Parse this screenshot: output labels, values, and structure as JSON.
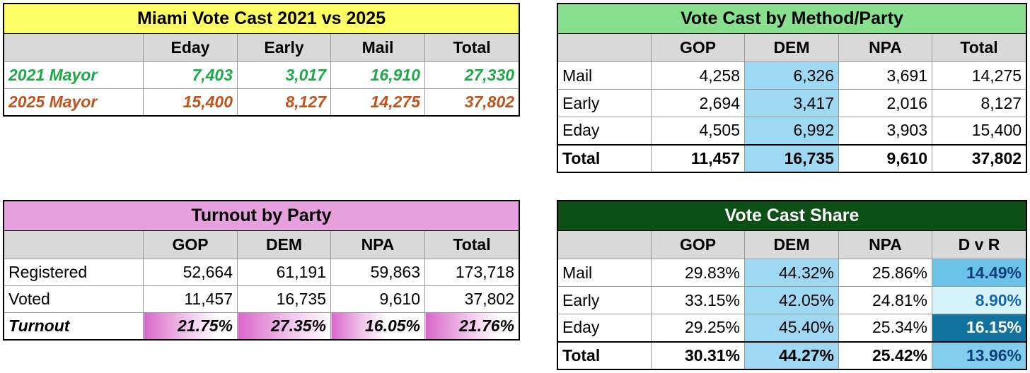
{
  "vote_cast": {
    "title": "Miami Vote Cast 2021 vs 2025",
    "headers": [
      "",
      "Eday",
      "Early",
      "Mail",
      "Total"
    ],
    "rows": [
      {
        "label": "2021 Mayor",
        "values": [
          "7,403",
          "3,017",
          "16,910",
          "27,330"
        ]
      },
      {
        "label": "2025 Mayor",
        "values": [
          "15,400",
          "8,127",
          "14,275",
          "37,802"
        ]
      }
    ],
    "colors": {
      "row_2021": "#1fa84a",
      "row_2025": "#c0541c",
      "title_bg": "#ffff66"
    }
  },
  "method_party": {
    "title": "Vote Cast by Method/Party",
    "headers": [
      "",
      "GOP",
      "DEM",
      "NPA",
      "Total"
    ],
    "rows": [
      {
        "label": "Mail",
        "values": [
          "4,258",
          "6,326",
          "3,691",
          "14,275"
        ]
      },
      {
        "label": "Early",
        "values": [
          "2,694",
          "3,417",
          "2,016",
          "8,127"
        ]
      },
      {
        "label": "Eday",
        "values": [
          "4,505",
          "6,992",
          "3,903",
          "15,400"
        ]
      },
      {
        "label": "Total",
        "values": [
          "11,457",
          "16,735",
          "9,610",
          "37,802"
        ]
      }
    ],
    "colors": {
      "title_bg": "#88e08f",
      "dem_highlight": "#9fd8f3"
    }
  },
  "turnout": {
    "title": "Turnout by Party",
    "headers": [
      "",
      "GOP",
      "DEM",
      "NPA",
      "Total"
    ],
    "rows": [
      {
        "label": "Registered",
        "values": [
          "52,664",
          "61,191",
          "59,863",
          "173,718"
        ]
      },
      {
        "label": "Voted",
        "values": [
          "11,457",
          "16,735",
          "9,610",
          "37,802"
        ]
      },
      {
        "label": "Turnout",
        "values": [
          "21.75%",
          "27.35%",
          "16.05%",
          "21.76%"
        ]
      }
    ],
    "colors": {
      "title_bg": "#e6a0de",
      "bar": "#d966cb"
    }
  },
  "share": {
    "title": "Vote Cast Share",
    "headers": [
      "",
      "GOP",
      "DEM",
      "NPA",
      "D v R"
    ],
    "rows": [
      {
        "label": "Mail",
        "values": [
          "29.83%",
          "44.32%",
          "25.86%",
          "14.49%"
        ]
      },
      {
        "label": "Early",
        "values": [
          "33.15%",
          "42.05%",
          "24.81%",
          "8.90%"
        ]
      },
      {
        "label": "Eday",
        "values": [
          "29.25%",
          "45.40%",
          "25.34%",
          "16.15%"
        ]
      },
      {
        "label": "Total",
        "values": [
          "30.31%",
          "44.27%",
          "25.42%",
          "13.96%"
        ]
      }
    ],
    "colors": {
      "title_bg": "#0d5016",
      "dvr_mail": "#6cc3ea",
      "dvr_early": "#d8f4fb",
      "dvr_eday": "#1273a0",
      "dvr_total": "#82cdec"
    }
  }
}
